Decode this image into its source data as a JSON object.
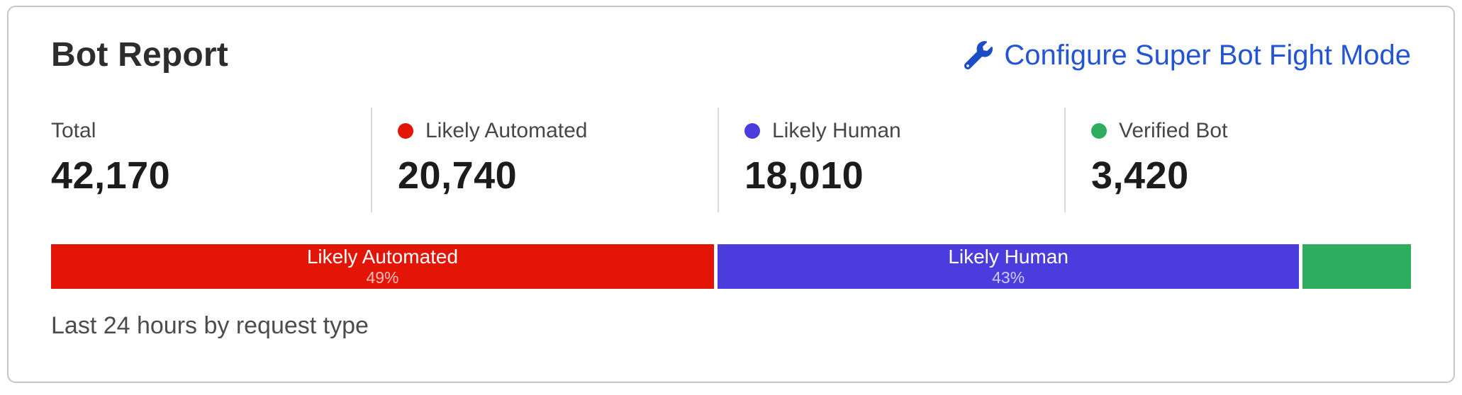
{
  "card": {
    "title": "Bot Report",
    "configure_link": {
      "label": "Configure Super Bot Fight Mode",
      "icon": "wrench-icon",
      "color": "#2254d4",
      "icon_color": "#1c4dc4"
    },
    "stats": [
      {
        "label": "Total",
        "value": "42,170",
        "dot_color": null
      },
      {
        "label": "Likely Automated",
        "value": "20,740",
        "dot_color": "#e21507"
      },
      {
        "label": "Likely Human",
        "value": "18,010",
        "dot_color": "#4b3ddd"
      },
      {
        "label": "Verified Bot",
        "value": "3,420",
        "dot_color": "#2fad5e"
      }
    ],
    "caption": "Last 24 hours by request type"
  },
  "chart_data": {
    "type": "bar",
    "variant": "stacked-horizontal",
    "title": "Bot Report",
    "caption": "Last 24 hours by request type",
    "total": 42170,
    "segments": [
      {
        "label": "Likely Automated",
        "value": 20740,
        "percent": 49,
        "color": "#e21507",
        "show_label": true
      },
      {
        "label": "Likely Human",
        "value": 18010,
        "percent": 43,
        "color": "#4b3ddd",
        "show_label": true
      },
      {
        "label": "Verified Bot",
        "value": 3420,
        "percent": 8,
        "color": "#2fad5e",
        "show_label": false
      }
    ]
  }
}
